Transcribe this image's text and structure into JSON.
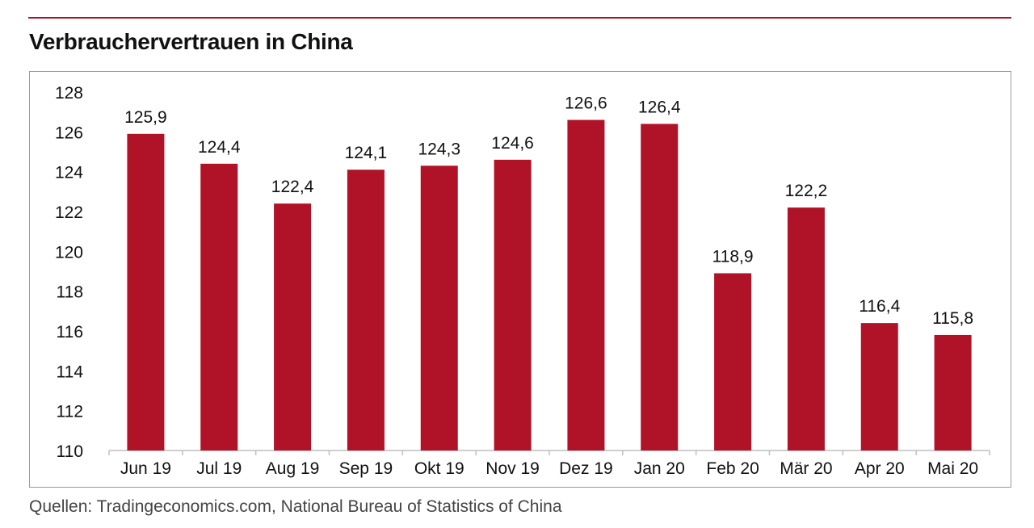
{
  "title": "Verbrauchervertrauen in China",
  "source": "Quellen: Tradingeconomics.com, National Bureau of Statistics of China",
  "colors": {
    "accent": "#b01327",
    "rule": "#a9142a",
    "axis": "#bfbfbf",
    "frame": "#9a9a9a"
  },
  "chart_data": {
    "type": "bar",
    "title": "Verbrauchervertrauen in China",
    "xlabel": "",
    "ylabel": "",
    "categories": [
      "Jun 19",
      "Jul 19",
      "Aug 19",
      "Sep 19",
      "Okt 19",
      "Nov 19",
      "Dez 19",
      "Jan 20",
      "Feb 20",
      "Mär 20",
      "Apr 20",
      "Mai 20"
    ],
    "values": [
      125.9,
      124.4,
      122.4,
      124.1,
      124.3,
      124.6,
      126.6,
      126.4,
      118.9,
      122.2,
      116.4,
      115.8
    ],
    "value_labels": [
      "125,9",
      "124,4",
      "122,4",
      "124,1",
      "124,3",
      "124,6",
      "126,6",
      "126,4",
      "118,9",
      "122,2",
      "116,4",
      "115,8"
    ],
    "ylim": [
      110,
      128
    ],
    "yticks": [
      110,
      112,
      114,
      116,
      118,
      120,
      122,
      124,
      126,
      128
    ],
    "grid": false,
    "legend": "none",
    "bar_color": "#b01327"
  }
}
